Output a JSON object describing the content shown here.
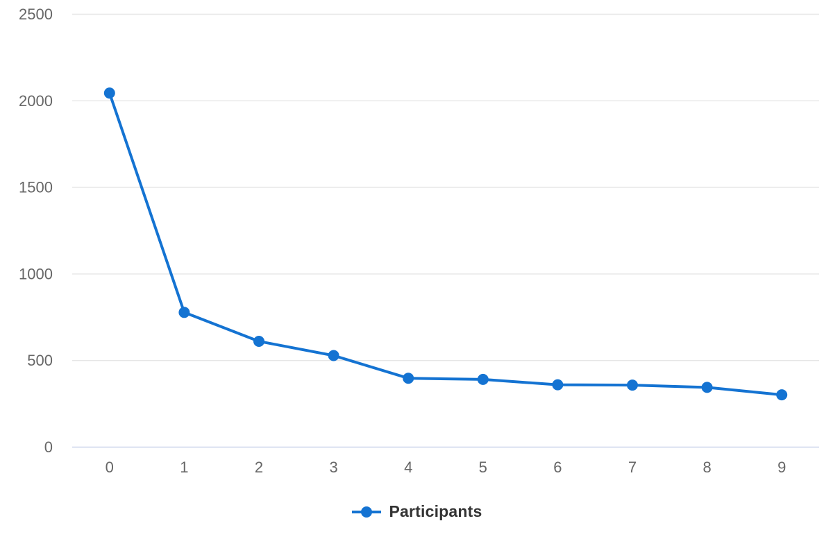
{
  "chart_data": {
    "type": "line",
    "title": "",
    "xlabel": "",
    "ylabel": "",
    "categories": [
      "0",
      "1",
      "2",
      "3",
      "4",
      "5",
      "6",
      "7",
      "8",
      "9"
    ],
    "series": [
      {
        "name": "Participants",
        "values": [
          2045,
          778,
          611,
          529,
          398,
          391,
          360,
          358,
          345,
          302
        ]
      }
    ],
    "ylim": [
      0,
      2500
    ],
    "yticks": [
      0,
      500,
      1000,
      1500,
      2000,
      2500
    ],
    "ytick_labels": [
      "0",
      "500",
      "1000",
      "1500",
      "2000",
      "2500"
    ],
    "grid": true,
    "marker_style": "circle",
    "legend": {
      "label": "Participants",
      "position": "bottom-center"
    },
    "colors": {
      "series": "#1473d2",
      "grid": "#e6e6e6",
      "axis_line": "#ccd6eb",
      "tick_label": "#666666",
      "legend_text": "#333333",
      "background": "#ffffff"
    }
  }
}
